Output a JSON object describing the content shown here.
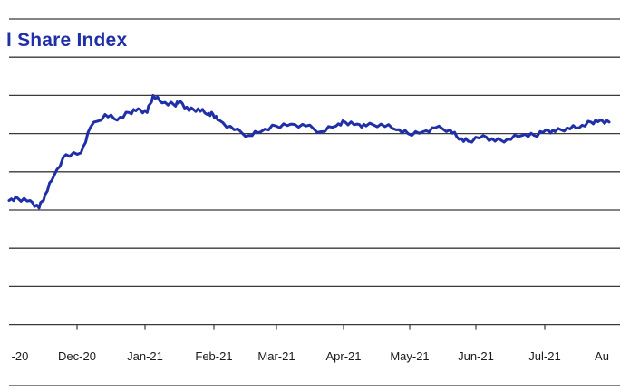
{
  "chart_data": {
    "type": "line",
    "title": "l Share Index",
    "xlabel": "",
    "ylabel": "",
    "x_tick_labels": [
      "-20",
      "Dec-20",
      "Jan-21",
      "Feb-21",
      "Mar-21",
      "Apr-21",
      "May-21",
      "Jun-21",
      "Jul-21",
      "Au"
    ],
    "grid": "horizontal",
    "grid_levels": [
      0,
      1,
      2,
      3,
      4,
      5,
      6,
      7,
      8
    ],
    "ylim": [
      0,
      8
    ],
    "xlim": [
      0,
      20
    ],
    "series": [
      {
        "color": "#1f2fa8",
        "x": [
          0,
          0.3,
          0.7,
          1.0,
          1.2,
          1.5,
          1.9,
          2.4,
          2.7,
          3.2,
          3.6,
          4.0,
          4.3,
          4.6,
          4.8,
          5.1,
          5.5,
          5.7,
          6.0,
          6.3,
          6.6,
          6.8,
          7.0,
          7.5,
          8.0,
          8.4,
          8.9,
          9.4,
          9.9,
          10.4,
          10.9,
          11.2,
          11.6,
          11.9,
          12.4,
          12.9,
          13.3,
          13.8,
          14.2,
          14.7,
          15.0,
          15.3,
          15.8,
          16.2,
          16.6,
          17.1,
          17.5,
          17.9,
          18.2,
          18.6,
          19.0,
          19.4,
          19.7,
          20.0
        ],
        "y": [
          3.25,
          3.3,
          3.25,
          3.05,
          3.4,
          3.9,
          4.45,
          4.5,
          5.15,
          5.5,
          5.35,
          5.55,
          5.65,
          5.55,
          6.0,
          5.8,
          5.75,
          5.85,
          5.6,
          5.65,
          5.5,
          5.5,
          5.35,
          5.1,
          4.95,
          5.05,
          5.2,
          5.25,
          5.2,
          5.05,
          5.2,
          5.3,
          5.25,
          5.2,
          5.25,
          5.1,
          5.0,
          5.05,
          5.15,
          5.1,
          4.85,
          4.8,
          4.95,
          4.8,
          4.85,
          4.95,
          4.95,
          5.1,
          5.05,
          5.15,
          5.15,
          5.3,
          5.35,
          5.3
        ]
      }
    ]
  }
}
